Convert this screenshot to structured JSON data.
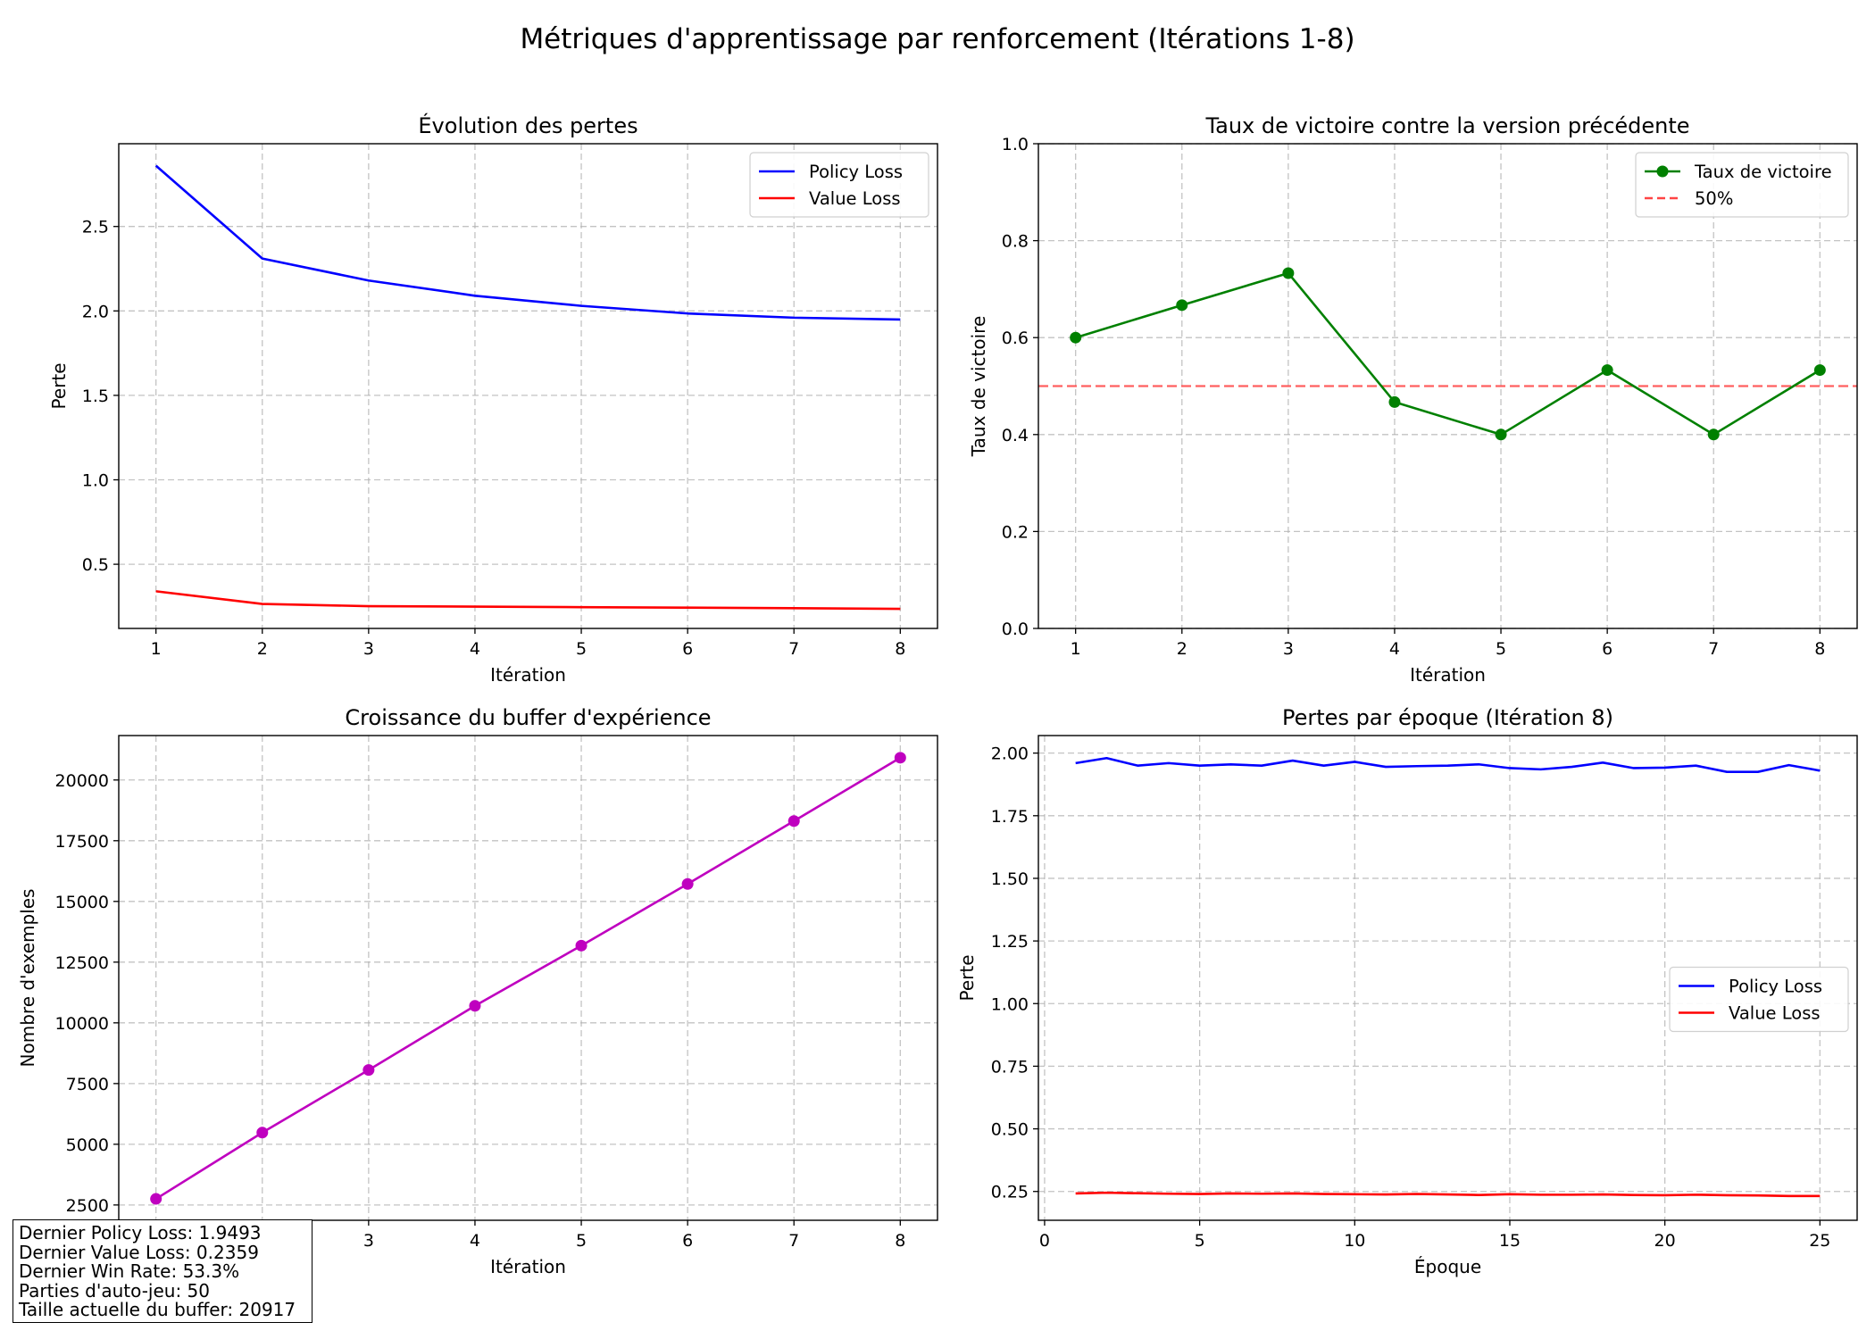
{
  "suptitle": "Métriques d'apprentissage par renforcement (Itérations 1-8)",
  "colors": {
    "policy": "#0000ff",
    "value": "#ff0000",
    "winrate": "#008000",
    "baseline": "#ff4444",
    "buffer": "#bf00bf"
  },
  "chart_data": [
    {
      "id": "losses",
      "type": "line",
      "title": "Évolution des pertes",
      "xlabel": "Itération",
      "ylabel": "Perte",
      "x": [
        1,
        2,
        3,
        4,
        5,
        6,
        7,
        8
      ],
      "xlim": [
        0.65,
        8.35
      ],
      "ylim": [
        0.12,
        2.99
      ],
      "xticks": [
        1,
        2,
        3,
        4,
        5,
        6,
        7,
        8
      ],
      "yticks": [
        0.5,
        1.0,
        1.5,
        2.0,
        2.5
      ],
      "ytick_labels": [
        "0.5",
        "1.0",
        "1.5",
        "2.0",
        "2.5"
      ],
      "grid": true,
      "legend": "top-right",
      "series": [
        {
          "name": "Policy Loss",
          "color": "#0000ff",
          "marker": false,
          "values": [
            2.86,
            2.31,
            2.18,
            2.09,
            2.03,
            1.985,
            1.96,
            1.9493
          ]
        },
        {
          "name": "Value Loss",
          "color": "#ff0000",
          "marker": false,
          "values": [
            0.34,
            0.265,
            0.252,
            0.249,
            0.246,
            0.243,
            0.24,
            0.2359
          ]
        }
      ]
    },
    {
      "id": "winrate",
      "type": "line",
      "title": "Taux de victoire contre la version précédente",
      "xlabel": "Itération",
      "ylabel": "Taux de victoire",
      "x": [
        1,
        2,
        3,
        4,
        5,
        6,
        7,
        8
      ],
      "xlim": [
        0.65,
        8.35
      ],
      "ylim": [
        0.0,
        1.0
      ],
      "xticks": [
        1,
        2,
        3,
        4,
        5,
        6,
        7,
        8
      ],
      "yticks": [
        0.0,
        0.2,
        0.4,
        0.6,
        0.8,
        1.0
      ],
      "ytick_labels": [
        "0.0",
        "0.2",
        "0.4",
        "0.6",
        "0.8",
        "1.0"
      ],
      "grid": true,
      "legend": "top-right",
      "series": [
        {
          "name": "Taux de victoire",
          "color": "#008000",
          "marker": true,
          "values": [
            0.6,
            0.667,
            0.733,
            0.467,
            0.4,
            0.533,
            0.4,
            0.533
          ]
        }
      ],
      "hlines": [
        {
          "name": "50%",
          "y": 0.5,
          "color": "#ff4444",
          "dashed": true
        }
      ]
    },
    {
      "id": "buffer",
      "type": "line",
      "title": "Croissance du buffer d'expérience",
      "xlabel": "Itération",
      "ylabel": "Nombre d'exemples",
      "x": [
        1,
        2,
        3,
        4,
        5,
        6,
        7,
        8
      ],
      "xlim": [
        0.65,
        8.35
      ],
      "ylim": [
        1870,
        21830
      ],
      "xticks": [
        1,
        2,
        3,
        4,
        5,
        6,
        7,
        8
      ],
      "yticks": [
        2500,
        5000,
        7500,
        10000,
        12500,
        15000,
        17500,
        20000
      ],
      "ytick_labels": [
        "2500",
        "5000",
        "7500",
        "10000",
        "12500",
        "15000",
        "17500",
        "20000"
      ],
      "grid": true,
      "legend": "none",
      "series": [
        {
          "color": "#bf00bf",
          "marker": true,
          "values": [
            2750,
            5480,
            8060,
            10700,
            13180,
            15720,
            18310,
            20917
          ]
        }
      ]
    },
    {
      "id": "epochs",
      "type": "line",
      "title": "Pertes par époque (Itération 8)",
      "xlabel": "Époque",
      "ylabel": "Perte",
      "x": [
        1,
        2,
        3,
        4,
        5,
        6,
        7,
        8,
        9,
        10,
        11,
        12,
        13,
        14,
        15,
        16,
        17,
        18,
        19,
        20,
        21,
        22,
        23,
        24,
        25
      ],
      "xlim": [
        -0.2,
        26.2
      ],
      "ylim": [
        0.135,
        2.07
      ],
      "xticks": [
        0,
        5,
        10,
        15,
        20,
        25
      ],
      "yticks": [
        0.25,
        0.5,
        0.75,
        1.0,
        1.25,
        1.5,
        1.75,
        2.0
      ],
      "ytick_labels": [
        "0.25",
        "0.50",
        "0.75",
        "1.00",
        "1.25",
        "1.50",
        "1.75",
        "2.00"
      ],
      "grid": true,
      "legend": "center-right",
      "series": [
        {
          "name": "Policy Loss",
          "color": "#0000ff",
          "marker": false,
          "values": [
            1.96,
            1.98,
            1.95,
            1.96,
            1.95,
            1.955,
            1.95,
            1.97,
            1.95,
            1.965,
            1.945,
            1.948,
            1.95,
            1.955,
            1.94,
            1.935,
            1.945,
            1.962,
            1.94,
            1.942,
            1.95,
            1.925,
            1.925,
            1.952,
            1.93
          ]
        },
        {
          "name": "Value Loss",
          "color": "#ff0000",
          "marker": false,
          "values": [
            0.242,
            0.245,
            0.243,
            0.241,
            0.24,
            0.242,
            0.241,
            0.242,
            0.24,
            0.239,
            0.238,
            0.24,
            0.238,
            0.236,
            0.239,
            0.237,
            0.237,
            0.238,
            0.236,
            0.235,
            0.237,
            0.235,
            0.234,
            0.232,
            0.232
          ]
        }
      ]
    }
  ],
  "info_box": [
    "Dernier Policy Loss: 1.9493",
    "Dernier Value Loss: 0.2359",
    "Dernier Win Rate: 53.3%",
    "Parties d'auto-jeu: 50",
    "Taille actuelle du buffer: 20917"
  ]
}
